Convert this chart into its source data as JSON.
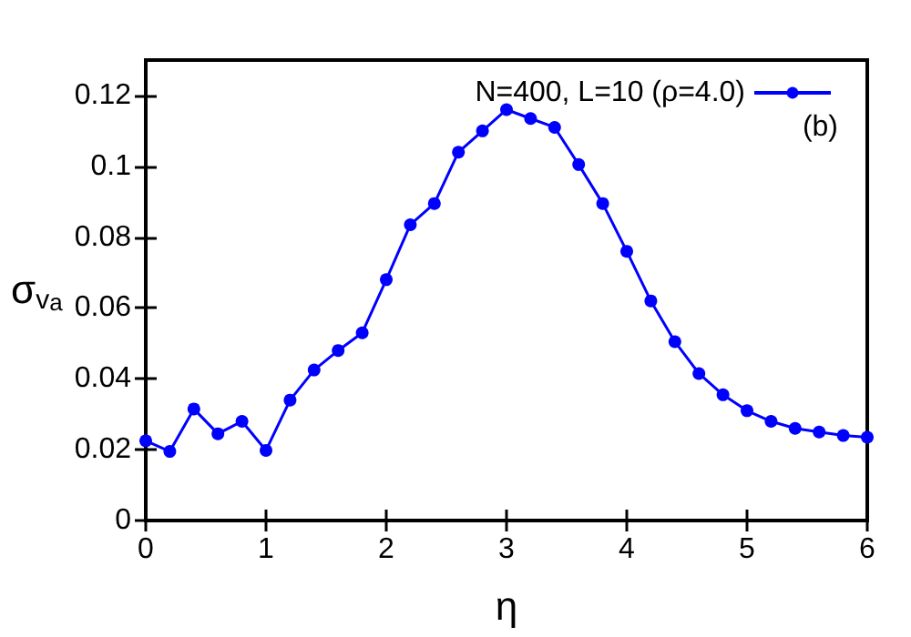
{
  "chart_data": {
    "type": "line",
    "xlabel": "η",
    "ylabel": "σ$_{v}$$_{a}$",
    "x": [
      0,
      0.2,
      0.4,
      0.6,
      0.8,
      1.0,
      1.2,
      1.4,
      1.6,
      1.8,
      2.0,
      2.2,
      2.4,
      2.6,
      2.8,
      3.0,
      3.2,
      3.4,
      3.6,
      3.8,
      4.0,
      4.2,
      4.4,
      4.6,
      4.8,
      5.0,
      5.2,
      5.4,
      5.6,
      5.8,
      6.0
    ],
    "series": [
      {
        "name": "N=400, L=10 (ρ=4.0)",
        "color": "#0000ff",
        "values": [
          0.0225,
          0.0195,
          0.0315,
          0.0245,
          0.028,
          0.0198,
          0.034,
          0.0425,
          0.048,
          0.053,
          0.068,
          0.0835,
          0.0895,
          0.104,
          0.11,
          0.116,
          0.1135,
          0.111,
          0.1005,
          0.0895,
          0.076,
          0.062,
          0.0505,
          0.0415,
          0.0355,
          0.031,
          0.028,
          0.026,
          0.025,
          0.024,
          0.0235
        ]
      }
    ],
    "xlim": [
      0,
      6
    ],
    "xticks": [
      0,
      1,
      2,
      3,
      4,
      5,
      6
    ],
    "ylim": [
      0,
      0.13
    ],
    "yticks": [
      0,
      0.02,
      0.04,
      0.06,
      0.08,
      0.1,
      0.12
    ],
    "annotations": [
      "(b)"
    ],
    "legend": "top right",
    "marker": "circle",
    "line_style": "solid",
    "grid": false
  }
}
